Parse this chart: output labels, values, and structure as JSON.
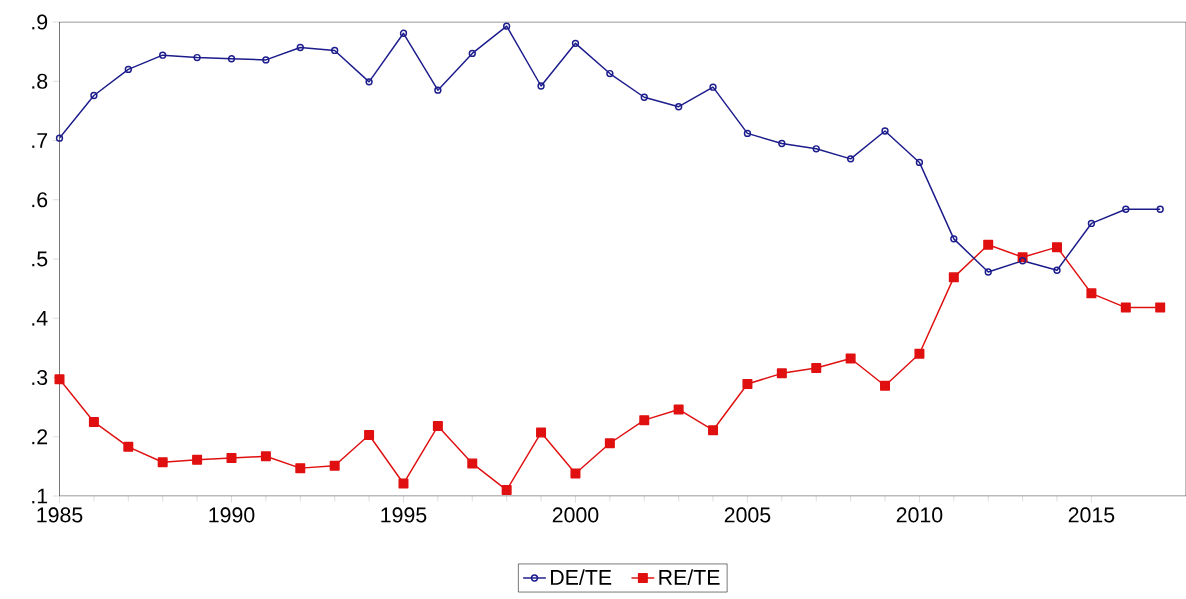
{
  "chart_data": {
    "type": "line",
    "x": [
      1985,
      1986,
      1987,
      1988,
      1989,
      1990,
      1991,
      1992,
      1993,
      1994,
      1995,
      1996,
      1997,
      1998,
      1999,
      2000,
      2001,
      2002,
      2003,
      2004,
      2005,
      2006,
      2007,
      2008,
      2009,
      2010,
      2011,
      2012,
      2013,
      2014,
      2015,
      2016,
      2017
    ],
    "series": [
      {
        "name": "DE/TE",
        "color": "#1c1c8c",
        "marker": "circle",
        "values": [
          0.704,
          0.776,
          0.82,
          0.844,
          0.84,
          0.838,
          0.836,
          0.857,
          0.852,
          0.799,
          0.881,
          0.785,
          0.847,
          0.893,
          0.792,
          0.864,
          0.813,
          0.773,
          0.757,
          0.79,
          0.712,
          0.695,
          0.686,
          0.669,
          0.716,
          0.663,
          0.534,
          0.478,
          0.497,
          0.481,
          0.56,
          0.584,
          0.584
        ]
      },
      {
        "name": "RE/TE",
        "color": "#e01010",
        "marker": "square",
        "values": [
          0.297,
          0.225,
          0.183,
          0.157,
          0.161,
          0.164,
          0.167,
          0.147,
          0.151,
          0.203,
          0.121,
          0.218,
          0.155,
          0.11,
          0.207,
          0.138,
          0.189,
          0.228,
          0.246,
          0.211,
          0.289,
          0.307,
          0.316,
          0.332,
          0.286,
          0.34,
          0.469,
          0.524,
          0.503,
          0.52,
          0.442,
          0.418,
          0.418
        ]
      }
    ],
    "xlim": [
      1985,
      2017.75
    ],
    "ylim": [
      0.1,
      0.9
    ],
    "xticks": [
      1985,
      1990,
      1995,
      2000,
      2005,
      2010,
      2015
    ],
    "yticks": [
      {
        "value": 0.1,
        "label": ".1"
      },
      {
        "value": 0.2,
        "label": ".2"
      },
      {
        "value": 0.3,
        "label": ".3"
      },
      {
        "value": 0.4,
        "label": ".4"
      },
      {
        "value": 0.5,
        "label": ".5"
      },
      {
        "value": 0.6,
        "label": ".6"
      },
      {
        "value": 0.7,
        "label": ".7"
      },
      {
        "value": 0.8,
        "label": ".8"
      },
      {
        "value": 0.9,
        "label": ".9"
      }
    ],
    "legend": "bottom",
    "line_style": "solid"
  }
}
